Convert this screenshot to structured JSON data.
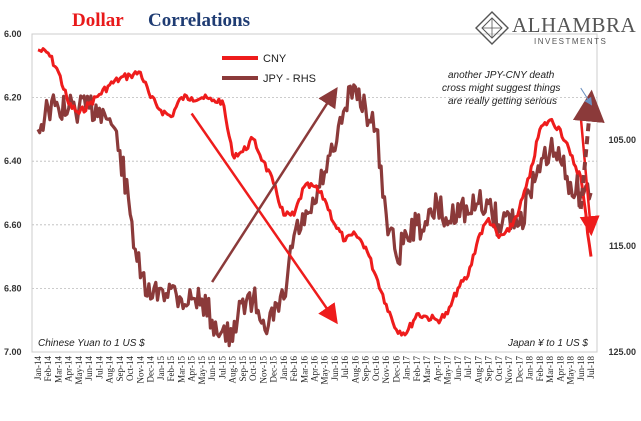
{
  "chart_data": {
    "type": "line",
    "title_part1": "Dollar",
    "title_part2": "Correlations",
    "left_axis_label": "Chinese Yuan to 1 US $",
    "right_axis_label": "Japan ¥ to 1 US $",
    "annotation": [
      "another JPY-CNY death",
      "cross might suggest things",
      "are really getting serious"
    ],
    "y_left": {
      "min": 6.0,
      "max": 7.0,
      "inverted": true,
      "ticks": [
        "6.00",
        "6.20",
        "6.40",
        "6.60",
        "6.80",
        "7.00"
      ]
    },
    "y_right": {
      "min": 95,
      "max": 125,
      "inverted": true,
      "ticks": [
        "105.00",
        "115.00",
        "125.00"
      ],
      "tick_values": [
        105,
        115,
        125
      ]
    },
    "x_labels": [
      "Jan-14",
      "Feb-14",
      "Mar-14",
      "Apr-14",
      "May-14",
      "Jun-14",
      "Jul-14",
      "Aug-14",
      "Sep-14",
      "Oct-14",
      "Nov-14",
      "Dec-14",
      "Jan-15",
      "Feb-15",
      "Mar-15",
      "Apr-15",
      "May-15",
      "Jun-15",
      "Jul-15",
      "Aug-15",
      "Sep-15",
      "Oct-15",
      "Nov-15",
      "Dec-15",
      "Jan-16",
      "Feb-16",
      "Mar-16",
      "Apr-16",
      "May-16",
      "Jun-16",
      "Jul-16",
      "Aug-16",
      "Sep-16",
      "Oct-16",
      "Nov-16",
      "Dec-16",
      "Jan-17",
      "Feb-17",
      "Mar-17",
      "Apr-17",
      "May-17",
      "Jun-17",
      "Jul-17",
      "Aug-17",
      "Sep-17",
      "Oct-17",
      "Nov-17",
      "Dec-17",
      "Jan-18",
      "Feb-18",
      "Mar-18",
      "Apr-18",
      "May-18",
      "Jun-18",
      "Jul-18"
    ],
    "grid": true,
    "series": [
      {
        "name": "CNY",
        "axis": "left",
        "color": "#ee1c1c",
        "values": [
          6.05,
          6.06,
          6.12,
          6.22,
          6.25,
          6.22,
          6.19,
          6.16,
          6.14,
          6.13,
          6.12,
          6.2,
          6.24,
          6.26,
          6.2,
          6.2,
          6.2,
          6.21,
          6.21,
          6.38,
          6.37,
          6.33,
          6.4,
          6.47,
          6.57,
          6.57,
          6.48,
          6.48,
          6.52,
          6.6,
          6.65,
          6.63,
          6.67,
          6.76,
          6.85,
          6.93,
          6.94,
          6.88,
          6.89,
          6.9,
          6.88,
          6.8,
          6.76,
          6.64,
          6.58,
          6.64,
          6.62,
          6.55,
          6.45,
          6.3,
          6.27,
          6.3,
          6.38,
          6.45,
          6.7
        ]
      },
      {
        "name": "JPY - RHS",
        "axis": "right",
        "color": "#8b3a3a",
        "values": [
          104,
          102,
          102,
          102,
          102,
          102,
          102,
          103,
          106,
          112,
          118,
          120,
          119,
          119,
          120,
          120,
          120,
          122,
          123,
          124,
          120,
          120,
          122,
          122,
          120,
          114,
          113,
          111,
          108,
          106,
          102,
          100,
          102,
          104,
          112,
          116,
          114,
          113,
          113,
          111,
          113,
          111,
          112,
          111,
          111,
          113,
          112,
          113,
          110,
          108,
          106,
          107,
          109,
          110,
          110
        ]
      }
    ],
    "arrows": [
      {
        "color": "#ee1c1c",
        "from": {
          "x": "Apr-15",
          "y": 6.25
        },
        "to": {
          "x": "Jun-16",
          "y": 6.9
        }
      },
      {
        "color": "#8b3a3a",
        "from": {
          "x": "Jun-15",
          "y": 6.78
        },
        "to": {
          "x": "Jun-16",
          "y": 6.18
        }
      },
      {
        "color": "#ee1c1c",
        "from": {
          "x": "Jun-18",
          "y": 6.26
        },
        "to": {
          "x": "Jul-18",
          "y": 6.62
        }
      },
      {
        "color": "#8b3a3a",
        "from": {
          "x": "Jun-18",
          "y": 6.55
        },
        "to": {
          "x": "Jul-18",
          "y": 6.2
        },
        "dashed": true
      },
      {
        "color": "#6a8fbf",
        "from": {
          "x": "Jun-18",
          "y": 6.17
        },
        "to": {
          "x": "Jul-18",
          "y": 6.22
        }
      }
    ]
  },
  "logo": {
    "name": "Alhambra",
    "sub": "Investments"
  }
}
